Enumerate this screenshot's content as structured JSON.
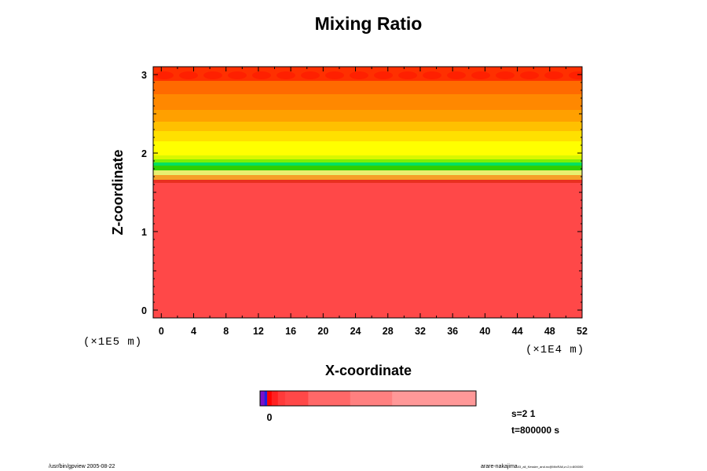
{
  "chart_data": {
    "type": "heatmap",
    "title": "Mixing Ratio",
    "xlabel": "X-coordinate",
    "ylabel": "Z-coordinate",
    "x_unit_label": "(×1E4 m)",
    "y_unit_label": "(×1E5 m)",
    "xlim": [
      -1,
      52
    ],
    "ylim": [
      -0.1,
      3.1
    ],
    "x_ticks": [
      "0",
      "4",
      "8",
      "12",
      "16",
      "20",
      "24",
      "28",
      "32",
      "36",
      "40",
      "44",
      "48",
      "52"
    ],
    "y_ticks": [
      "0",
      "1",
      "2",
      "3"
    ],
    "layers": [
      {
        "z_bottom": -0.1,
        "z_top": 1.62,
        "color": "#ff4848"
      },
      {
        "z_bottom": 1.62,
        "z_top": 1.66,
        "color": "#e83020"
      },
      {
        "z_bottom": 1.66,
        "z_top": 1.72,
        "color": "#f6a028"
      },
      {
        "z_bottom": 1.72,
        "z_top": 1.78,
        "color": "#e8f070"
      },
      {
        "z_bottom": 1.78,
        "z_top": 1.84,
        "color": "#30d000"
      },
      {
        "z_bottom": 1.84,
        "z_top": 1.88,
        "color": "#00e060"
      },
      {
        "z_bottom": 1.88,
        "z_top": 1.92,
        "color": "#80f000"
      },
      {
        "z_bottom": 1.92,
        "z_top": 1.97,
        "color": "#d8f800"
      },
      {
        "z_bottom": 1.97,
        "z_top": 2.15,
        "color": "#ffff00"
      },
      {
        "z_bottom": 2.15,
        "z_top": 2.28,
        "color": "#ffe000"
      },
      {
        "z_bottom": 2.28,
        "z_top": 2.4,
        "color": "#ffc000"
      },
      {
        "z_bottom": 2.4,
        "z_top": 2.55,
        "color": "#ffa000"
      },
      {
        "z_bottom": 2.55,
        "z_top": 2.75,
        "color": "#ff8800"
      },
      {
        "z_bottom": 2.75,
        "z_top": 2.92,
        "color": "#ff6a00"
      },
      {
        "z_bottom": 2.92,
        "z_top": 3.1,
        "color": "#ff3000"
      }
    ],
    "colorbar": {
      "segments": [
        {
          "color": "#7a10c8",
          "weight": 1
        },
        {
          "color": "#2020e0",
          "weight": 0.6
        },
        {
          "color": "#ff0000",
          "weight": 1
        },
        {
          "color": "#ff2020",
          "weight": 1.4
        },
        {
          "color": "#ff3a3a",
          "weight": 1.6
        },
        {
          "color": "#ff4848",
          "weight": 5.2
        },
        {
          "color": "#ff6868",
          "weight": 9.4
        },
        {
          "color": "#ff8080",
          "weight": 9.4
        },
        {
          "color": "#ff9898",
          "weight": 18.8
        }
      ],
      "tick_label": "0"
    },
    "info": [
      "s=2 1",
      "t=800000 s"
    ],
    "footer_left": "/usr/bin/gpview 2005-08-22",
    "footer_right_main": "arare-nakajima",
    "footer_right_small": "03_all_Kessler_and.nc@MixRAll,z=2,t=800000"
  }
}
